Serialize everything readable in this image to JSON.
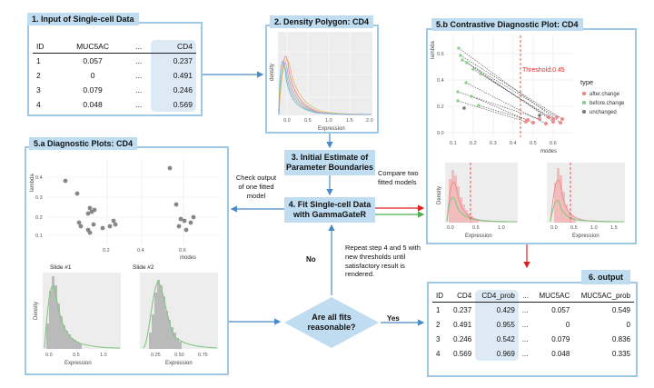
{
  "panel1": {
    "title": "1. Input of Single-cell Data",
    "headers": [
      "ID",
      "MUC5AC",
      "...",
      "CD4"
    ],
    "rows": [
      [
        "1",
        "0.057",
        "...",
        "0.237"
      ],
      [
        "2",
        "0",
        "...",
        "0.491"
      ],
      [
        "3",
        "0.079",
        "...",
        "0.246"
      ],
      [
        "4",
        "0.048",
        "...",
        "0.569"
      ]
    ]
  },
  "panel2": {
    "title": "2. Density Polygon: CD4",
    "ylabel": "density",
    "xlabel": "Expression",
    "xticks": [
      "0.0",
      "0.5",
      "1.0",
      "1.5",
      "2.0"
    ]
  },
  "panel5b": {
    "title": "5.b Contrastive Diagnostic Plot: CD4",
    "ylabel": "lambda",
    "xlabel": "modes",
    "threshold_label": "Threshold:0.45",
    "yticks": [
      "0.6",
      "0.4",
      "0.2",
      "0.0"
    ],
    "xticks": [
      "0.1",
      "0.2",
      "0.3",
      "0.4",
      "0.5",
      "0.6"
    ],
    "legend_title": "type",
    "legend": [
      {
        "label": "after.change",
        "color": "#f08080"
      },
      {
        "label": "before.change",
        "color": "#7fcf7f"
      },
      {
        "label": "unchanged",
        "color": "#777777"
      }
    ],
    "density_ylabel": "Density",
    "density_xlabel": "Expression",
    "left_xticks": [
      "0.0",
      "0.5",
      "1.0"
    ],
    "right_xticks": [
      "0.0",
      "0.5",
      "1.0",
      "1.5"
    ]
  },
  "panel5a": {
    "title": "5.a Diagnostic Plots: CD4",
    "ylabel": "lambda",
    "xlabel": "modes",
    "yticks": [
      "0.4",
      "0.3",
      "0.2",
      "0.1"
    ],
    "xticks": [
      "0.2",
      "0.4",
      "0.6"
    ],
    "slide1": "Slide #1",
    "slide2": "Slide #2",
    "density_ylabel": "Density",
    "density_xlabel": "Expression",
    "left_xticks": [
      "0.0",
      "0.5",
      "1.0"
    ],
    "right_xticks": [
      "0.25",
      "0.50",
      "0.75"
    ]
  },
  "flow": {
    "step3": "3. Initial Estimate of Parameter Boundaries",
    "step4": "4. Fit Single-cell Data with GammaGateR",
    "check_note": "Check output of one fitted model",
    "compare_note": "Compare two fitted models",
    "repeat_note": "Repeat step 4 and 5 with new thresholds until satisfactory result is rendered.",
    "no_label": "No",
    "yes_label": "Yes",
    "decision": "Are all fits reasonable?"
  },
  "panel6": {
    "title": "6. output",
    "headers": [
      "ID",
      "CD4",
      "CD4_prob",
      "...",
      "MUC5AC",
      "MUC5AC_prob"
    ],
    "rows": [
      [
        "1",
        "0.237",
        "0.429",
        "...",
        "0.057",
        "0.549"
      ],
      [
        "2",
        "0.491",
        "0.955",
        "...",
        "0",
        "0"
      ],
      [
        "3",
        "0.246",
        "0.542",
        "...",
        "0.079",
        "0.836"
      ],
      [
        "4",
        "0.569",
        "0.969",
        "...",
        "0.048",
        "0.335"
      ]
    ]
  },
  "colors": {
    "panel_border": "#9ec8e4",
    "label_fill": "#bfdcf0",
    "arrow_blue": "#4a89c8",
    "arrow_red": "#e02020",
    "arrow_green": "#4caf50",
    "threshold": "#e03030"
  }
}
